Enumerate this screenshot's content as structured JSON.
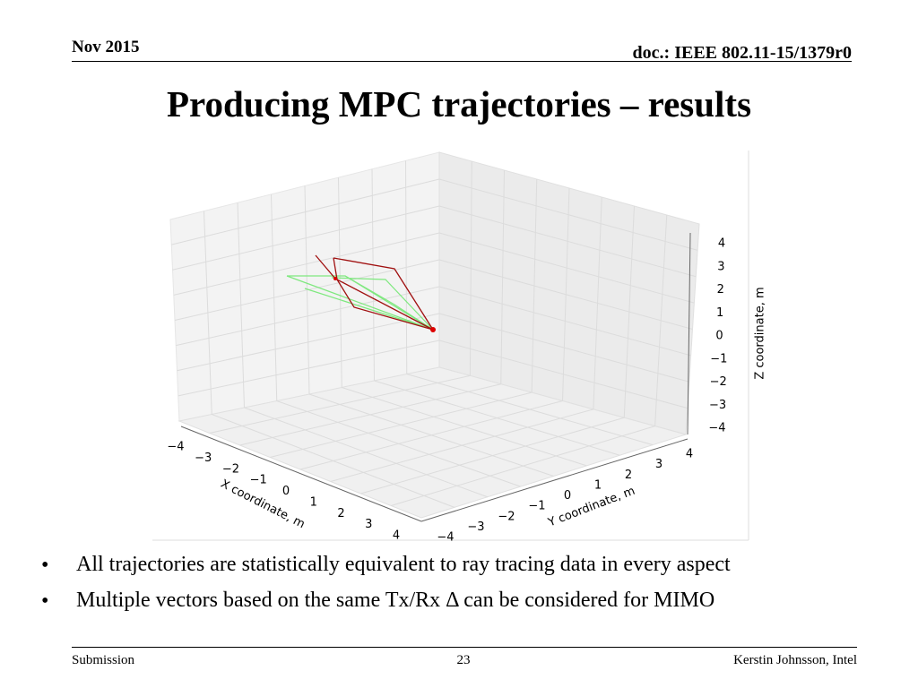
{
  "header": {
    "date": "Nov 2015",
    "doc": "doc.: IEEE 802.11-15/1379r0"
  },
  "title": "Producing MPC trajectories – results",
  "figure": {
    "x_label": "X coordinate, m",
    "y_label": "Y coordinate, m",
    "z_label": "Z coordinate, m",
    "x_ticks": [
      "−4",
      "−3",
      "−2",
      "−1",
      "0",
      "1",
      "2",
      "3",
      "4"
    ],
    "y_ticks": [
      "−4",
      "−3",
      "−2",
      "−1",
      "0",
      "1",
      "2",
      "3",
      "4"
    ],
    "z_ticks": [
      "4",
      "3",
      "2",
      "1",
      "0",
      "−1",
      "−2",
      "−3",
      "−4"
    ]
  },
  "bullets": [
    "All trajectories are statistically equivalent to ray tracing data in every aspect",
    "Multiple vectors based on the same Tx/Rx Δ can be considered for MIMO"
  ],
  "footer": {
    "left": "Submission",
    "page": "23",
    "right": "Kerstin Johnsson, Intel"
  }
}
